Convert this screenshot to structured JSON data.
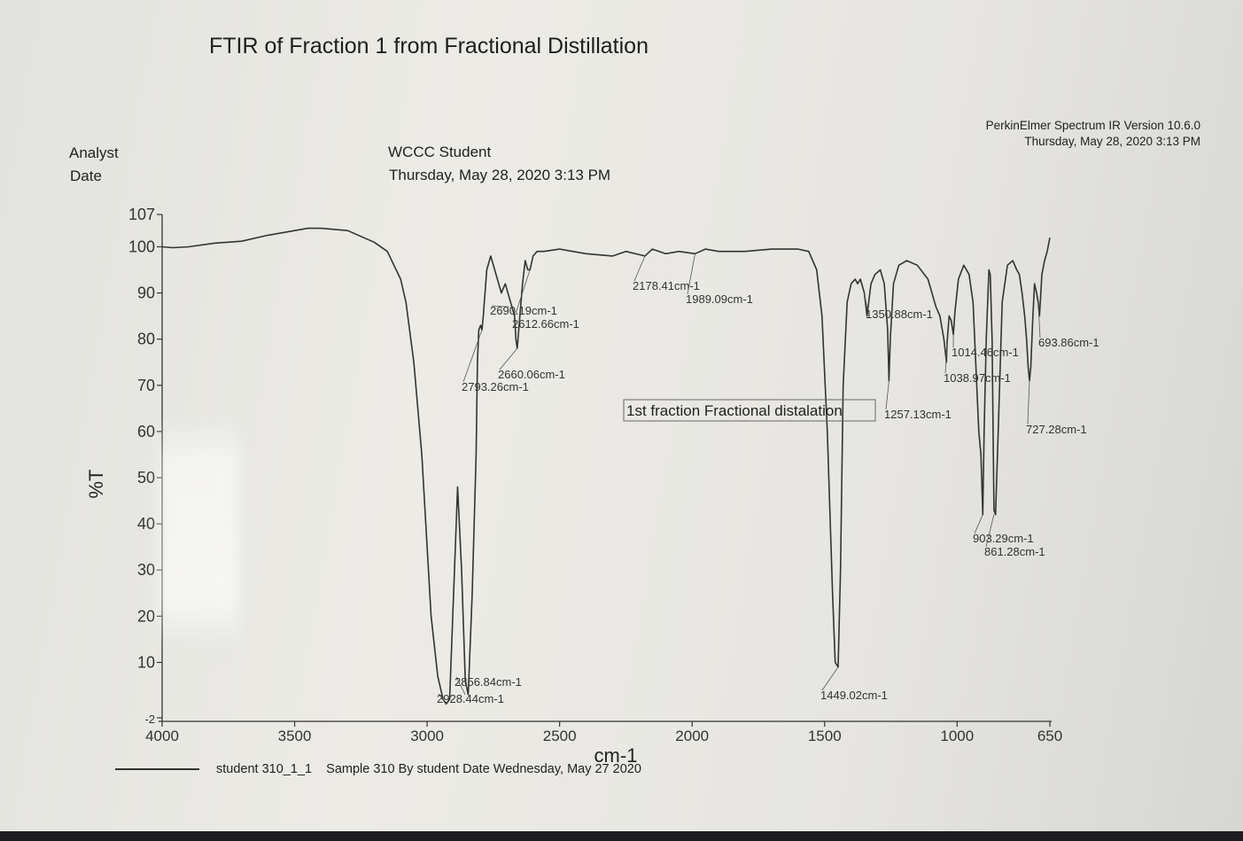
{
  "header": {
    "title": "FTIR of Fraction 1 from Fractional Distillation",
    "analyst_label": "Analyst",
    "date_label": "Date",
    "analyst_value": "WCCC  Student",
    "date_value": "Thursday, May 28, 2020 3:13 PM",
    "software_line1": "PerkinElmer Spectrum IR Version 10.6.0",
    "software_line2": "Thursday, May 28, 2020 3:13 PM"
  },
  "legend": {
    "sample_name": "student 310_1_1",
    "description": "Sample 310 By student Date Wednesday, May 27 2020"
  },
  "chart_data": {
    "type": "line",
    "xlabel": "cm-1",
    "ylabel": "%T",
    "xlim": [
      4000,
      650
    ],
    "ylim": [
      -2,
      107
    ],
    "x_ticks": [
      "4000",
      "3500",
      "3000",
      "2500",
      "2000",
      "1500",
      "1000",
      "650"
    ],
    "y_ticks": [
      "107",
      "100",
      "90",
      "80",
      "70",
      "60",
      "50",
      "40",
      "30",
      "20",
      "10",
      "-2"
    ],
    "grid": false,
    "annotation_box": "1st fraction Fractional distalation",
    "series": [
      {
        "x": [
          4000,
          3960,
          3900,
          3800,
          3700,
          3600,
          3500,
          3450,
          3400,
          3300,
          3200,
          3150,
          3100,
          3080,
          3050,
          3020,
          3000,
          2985,
          2960,
          2940,
          2928,
          2915,
          2900,
          2885,
          2870,
          2856,
          2845,
          2830,
          2815,
          2810,
          2805,
          2798,
          2793,
          2788,
          2775,
          2760,
          2745,
          2720,
          2705,
          2690,
          2680,
          2670,
          2665,
          2660,
          2650,
          2640,
          2630,
          2620,
          2612,
          2600,
          2585,
          2560,
          2500,
          2400,
          2300,
          2250,
          2178,
          2150,
          2100,
          2050,
          1989,
          1950,
          1900,
          1800,
          1700,
          1640,
          1600,
          1560,
          1530,
          1510,
          1490,
          1470,
          1460,
          1449,
          1440,
          1430,
          1415,
          1400,
          1385,
          1375,
          1365,
          1350,
          1340,
          1325,
          1310,
          1290,
          1275,
          1262,
          1257,
          1252,
          1240,
          1220,
          1190,
          1150,
          1110,
          1080,
          1065,
          1050,
          1040,
          1038,
          1030,
          1022,
          1014,
          1008,
          995,
          975,
          955,
          940,
          930,
          918,
          910,
          903,
          898,
          890,
          880,
          875,
          868,
          861,
          855,
          845,
          830,
          810,
          790,
          775,
          765,
          755,
          745,
          738,
          732,
          727,
          722,
          715,
          708,
          700,
          694,
          689,
          680,
          670,
          660,
          650
        ],
        "y": [
          100,
          99.8,
          100,
          100.8,
          101.2,
          102.5,
          103.5,
          104,
          104,
          103.5,
          101,
          99,
          93,
          88,
          75,
          55,
          35,
          20,
          7,
          2,
          1,
          2,
          25,
          48,
          30,
          6,
          3,
          25,
          55,
          75,
          82,
          83,
          82,
          85,
          95,
          98,
          95,
          90,
          92,
          89,
          87,
          85,
          80,
          78,
          85,
          92,
          97,
          95,
          95,
          98,
          99,
          99,
          99.5,
          98.5,
          98,
          99,
          98,
          99.5,
          98.5,
          99,
          98.5,
          99.5,
          99,
          99,
          99.5,
          99.5,
          99.5,
          99,
          95,
          85,
          60,
          25,
          10,
          9,
          30,
          70,
          88,
          92,
          93,
          92,
          93,
          90,
          85,
          92,
          94,
          95,
          92,
          82,
          71,
          80,
          92,
          96,
          97,
          96,
          93,
          87,
          85,
          80,
          75,
          79,
          85,
          84,
          81,
          86,
          93,
          96,
          94,
          88,
          75,
          60,
          55,
          42,
          60,
          80,
          95,
          94,
          80,
          43,
          42,
          60,
          88,
          96,
          97,
          95,
          94,
          90,
          85,
          80,
          74,
          71,
          74,
          84,
          92,
          90,
          88,
          85,
          94,
          97,
          99,
          102
        ]
      }
    ],
    "annotations": [
      {
        "label": "2690.19cm-1",
        "x": 2690,
        "y": 87
      },
      {
        "label": "2612.66cm-1",
        "x": 2612,
        "y": 95
      },
      {
        "label": "2660.06cm-1",
        "x": 2660,
        "y": 78
      },
      {
        "label": "2793.26cm-1",
        "x": 2793,
        "y": 82
      },
      {
        "label": "2178.41cm-1",
        "x": 2178,
        "y": 98
      },
      {
        "label": "1989.09cm-1",
        "x": 1989,
        "y": 98.5
      },
      {
        "label": "1350.88cm-1",
        "x": 1350,
        "y": 90
      },
      {
        "label": "1014.46cm-1",
        "x": 1014,
        "y": 81
      },
      {
        "label": "1038.97cm-1",
        "x": 1038,
        "y": 79
      },
      {
        "label": "693.86cm-1",
        "x": 694,
        "y": 88
      },
      {
        "label": "1257.13cm-1",
        "x": 1257,
        "y": 71
      },
      {
        "label": "727.28cm-1",
        "x": 727,
        "y": 71
      },
      {
        "label": "903.29cm-1",
        "x": 903,
        "y": 42
      },
      {
        "label": "861.28cm-1",
        "x": 861,
        "y": 42
      },
      {
        "label": "2856.84cm-1",
        "x": 2856,
        "y": 3
      },
      {
        "label": "2928.44cm-1",
        "x": 2928,
        "y": 1
      },
      {
        "label": "1449.02cm-1",
        "x": 1449,
        "y": 9
      }
    ]
  }
}
